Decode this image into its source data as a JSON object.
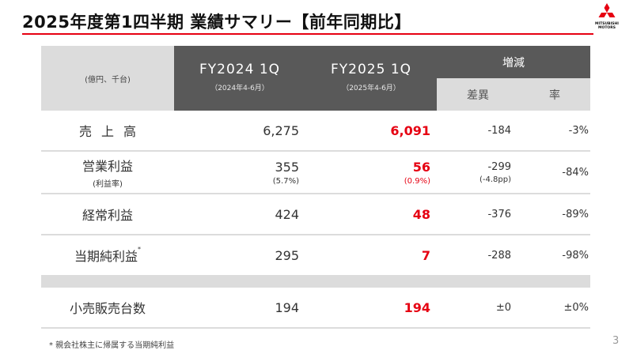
{
  "header": {
    "title": "2025年度第1四半期 業績サマリー【前年同期比】",
    "logo_text_line1": "MITSUBISHI",
    "logo_text_line2": "MOTORS",
    "accent_color": "#e60012"
  },
  "table": {
    "unit_label": "(億円、千台)",
    "fy2024": {
      "label": "FY2024 1Q",
      "period": "（2024年4-6月）"
    },
    "fy2025": {
      "label": "FY2025 1Q",
      "period": "（2025年4-6月）"
    },
    "change": {
      "label": "増減",
      "diff_label": "差異",
      "rate_label": "率"
    },
    "rows": [
      {
        "label": "売上高",
        "fy2024": "6,275",
        "fy2025": "6,091",
        "diff": "-184",
        "rate": "-3%"
      },
      {
        "label": "営業利益",
        "label_sub": "(利益率)",
        "fy2024": "355",
        "fy2024_sub": "(5.7%)",
        "fy2025": "56",
        "fy2025_sub": "(0.9%)",
        "diff": "-299",
        "diff_sub": "(-4.8pp)",
        "rate": "-84%"
      },
      {
        "label": "経常利益",
        "fy2024": "424",
        "fy2025": "48",
        "diff": "-376",
        "rate": "-89%"
      },
      {
        "label": "当期純利益",
        "label_mark": "*",
        "fy2024": "295",
        "fy2025": "7",
        "diff": "-288",
        "rate": "-98%"
      },
      {
        "label": "小売販売台数",
        "fy2024": "194",
        "fy2025": "194",
        "diff": "±0",
        "rate": "±0%"
      }
    ]
  },
  "footnote": "* 親会社株主に帰属する当期純利益",
  "page_number": "3"
}
